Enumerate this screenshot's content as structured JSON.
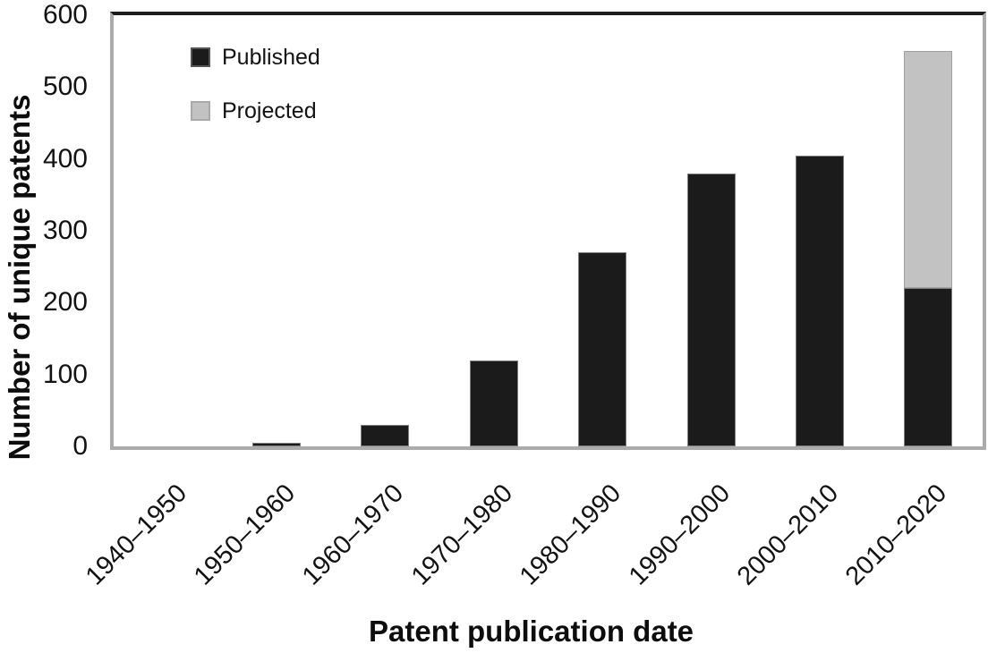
{
  "chart_data": {
    "type": "bar",
    "stacked": true,
    "title": "",
    "xlabel": "Patent publication date",
    "ylabel": "Number of unique patents",
    "categories": [
      "1940–1950",
      "1950–1960",
      "1960–1970",
      "1970–1980",
      "1980–1990",
      "1990–2000",
      "2000–2010",
      "2010–2020"
    ],
    "series": [
      {
        "name": "Published",
        "color": "#1b1b1b",
        "values": [
          0,
          5,
          30,
          120,
          270,
          380,
          405,
          220
        ]
      },
      {
        "name": "Projected",
        "color": "#c2c2c2",
        "values": [
          0,
          0,
          0,
          0,
          0,
          0,
          0,
          330
        ]
      }
    ],
    "stack_totals": [
      0,
      5,
      30,
      120,
      270,
      380,
      405,
      550
    ],
    "ylim": [
      0,
      600
    ],
    "yticks": [
      0,
      100,
      200,
      300,
      400,
      500,
      600
    ],
    "grid": false,
    "legend_position": "upper-left-inside",
    "frame_top_color": "#1c1c1c",
    "axis_line_color": "#ababab"
  },
  "legend": {
    "items": [
      {
        "label": "Published",
        "color": "#1b1b1b",
        "border": "#555555"
      },
      {
        "label": "Projected",
        "color": "#c2c2c2",
        "border": "#a8a8a8"
      }
    ]
  }
}
